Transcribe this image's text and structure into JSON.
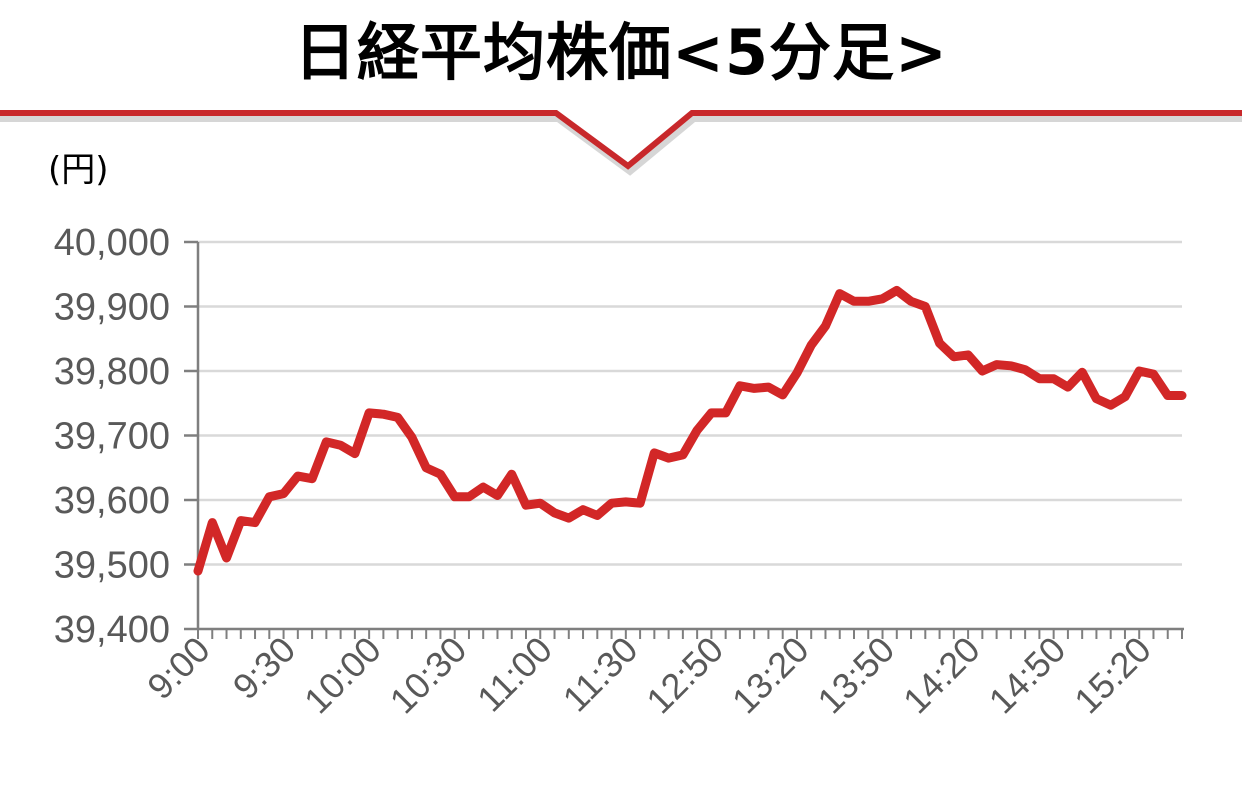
{
  "header": {
    "title": "日経平均株価<5分足>",
    "accent_color": "#c8282b"
  },
  "chart_data": {
    "type": "line",
    "title": "日経平均株価<5分足>",
    "ylabel": "(円)",
    "xlabel": "",
    "ylim": [
      39400,
      40000
    ],
    "yticks": [
      40000,
      39900,
      39800,
      39700,
      39600,
      39500,
      39400
    ],
    "ytick_labels": [
      "40,000",
      "39,900",
      "39,800",
      "39,700",
      "39,600",
      "39,500",
      "39,400"
    ],
    "grid": true,
    "legend": "none",
    "x_tick_labels": [
      "9:00",
      "9:30",
      "10:00",
      "10:30",
      "11:00",
      "11:30",
      "12:50",
      "13:20",
      "13:50",
      "14:20",
      "14:50",
      "15:20"
    ],
    "x_tick_label_positions": [
      0,
      6,
      12,
      18,
      24,
      30,
      36,
      42,
      48,
      54,
      60,
      66
    ],
    "series": [
      {
        "color": "#d22727",
        "values": [
          39490,
          39565,
          39510,
          39568,
          39565,
          39605,
          39610,
          39637,
          39633,
          39690,
          39685,
          39672,
          39735,
          39733,
          39728,
          39697,
          39650,
          39640,
          39605,
          39605,
          39620,
          39607,
          39640,
          39592,
          39595,
          39580,
          39572,
          39585,
          39576,
          39595,
          39597,
          39595,
          39673,
          39665,
          39670,
          39708,
          39735,
          39735,
          39777,
          39773,
          39775,
          39763,
          39797,
          39840,
          39870,
          39920,
          39908,
          39908,
          39912,
          39925,
          39908,
          39900,
          39843,
          39822,
          39825,
          39800,
          39810,
          39808,
          39802,
          39788,
          39788,
          39775,
          39798,
          39757,
          39747,
          39760,
          39800,
          39795,
          39762,
          39762
        ]
      }
    ]
  }
}
